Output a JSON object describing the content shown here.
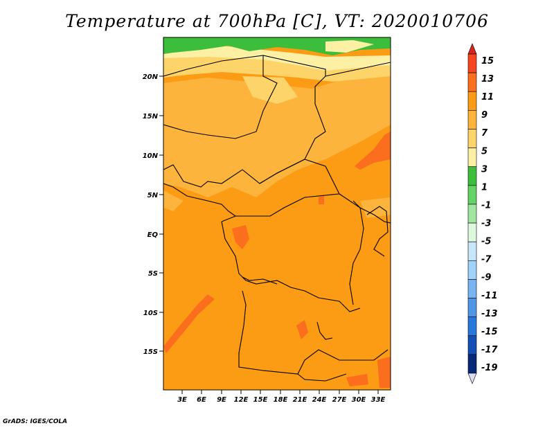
{
  "title": "Temperature at 700hPa [C], VT: 2020010706",
  "credit": "GrADS: IGES/COLA",
  "map": {
    "lat_ticks": [
      "20N",
      "15N",
      "10N",
      "5N",
      "EQ",
      "5S",
      "10S",
      "15S"
    ],
    "lon_ticks": [
      "3E",
      "6E",
      "9E",
      "12E",
      "15E",
      "18E",
      "21E",
      "24E",
      "27E",
      "30E",
      "33E"
    ]
  },
  "colorbar": {
    "labels": [
      "15",
      "13",
      "11",
      "9",
      "7",
      "5",
      "3",
      "1",
      "-1",
      "-3",
      "-5",
      "-7",
      "-9",
      "-11",
      "-13",
      "-15",
      "-17",
      "-19"
    ],
    "colors": [
      "#d7261e",
      "#f5461f",
      "#fa6e1e",
      "#fc9b14",
      "#fcb43c",
      "#fcd46a",
      "#fcf0a4",
      "#3cbe3c",
      "#64d264",
      "#a0e6a0",
      "#ddf8dd",
      "#c8e6fa",
      "#a0d2fa",
      "#78b4f0",
      "#5096e6",
      "#2878dc",
      "#1450b4",
      "#0a2878",
      "#000a64"
    ]
  }
}
